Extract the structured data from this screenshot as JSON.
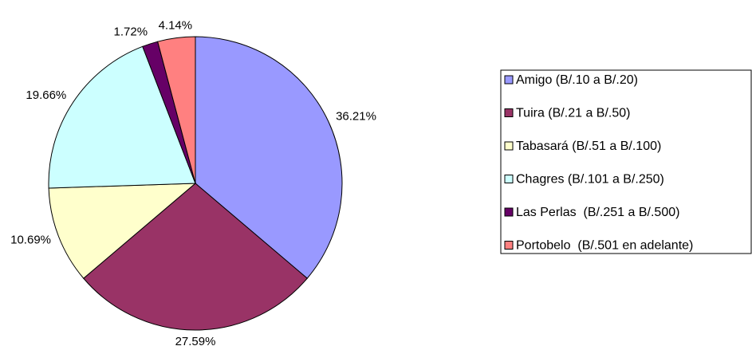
{
  "chart_data": {
    "type": "pie",
    "categories": [
      "Amigo (B/.10 a B/.20)",
      "Tuira (B/.21 a B/.50)",
      "Tabasará (B/.51 a B/.100)",
      "Chagres (B/.101 a B/.250)",
      "Las Perlas  (B/.251 a B/.500)",
      "Portobelo  (B/.501 en adelante)"
    ],
    "values": [
      36.21,
      27.59,
      10.69,
      19.66,
      1.72,
      4.14
    ],
    "value_labels": [
      "36.21%",
      "27.59%",
      "10.69%",
      "19.66%",
      "1.72%",
      "4.14%"
    ],
    "colors": [
      "#9999ff",
      "#993366",
      "#ffffcc",
      "#ccffff",
      "#660066",
      "#ff8080"
    ],
    "legend": "right"
  }
}
